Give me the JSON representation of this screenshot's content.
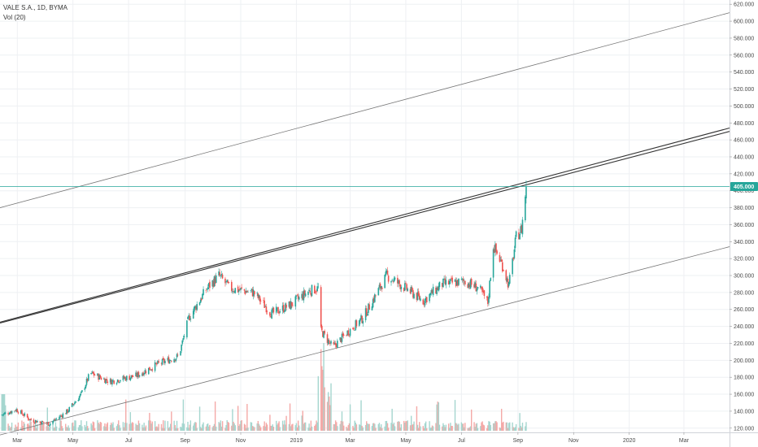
{
  "legend": {
    "symbol_line": "VALE S.A., 1D, BYMA",
    "volume_line": "Vol (20)"
  },
  "colors": {
    "up": "#26a69a",
    "down": "#ef5350",
    "vol_up": "#a5d6cf",
    "vol_down": "#f4a9a7",
    "grid": "#eef0f3",
    "trend": "#555555",
    "price_line": "#26a69a",
    "price_tag": "#26a69a"
  },
  "chart_data": {
    "type": "candlestick",
    "y_axis": {
      "min": 115,
      "max": 625,
      "ticks": [
        "120.000",
        "140.000",
        "160.000",
        "180.000",
        "200.000",
        "220.000",
        "240.000",
        "260.000",
        "280.000",
        "300.000",
        "320.000",
        "340.000",
        "360.000",
        "380.000",
        "400.000",
        "420.000",
        "440.000",
        "460.000",
        "480.000",
        "500.000",
        "520.000",
        "540.000",
        "560.000",
        "580.000",
        "600.000",
        "620.000"
      ],
      "tick_values": [
        120,
        140,
        160,
        180,
        200,
        220,
        240,
        260,
        280,
        300,
        320,
        340,
        360,
        380,
        400,
        420,
        440,
        460,
        480,
        500,
        520,
        540,
        560,
        580,
        600,
        620
      ]
    },
    "x_axis": {
      "start": "2018-02-10",
      "end": "2020-04-20",
      "labels": [
        {
          "text": "Mar",
          "date": "2018-03-01"
        },
        {
          "text": "May",
          "date": "2018-05-01"
        },
        {
          "text": "Jul",
          "date": "2018-07-01"
        },
        {
          "text": "Sep",
          "date": "2018-09-01"
        },
        {
          "text": "Nov",
          "date": "2018-11-01"
        },
        {
          "text": "2019",
          "date": "2019-01-01"
        },
        {
          "text": "Mar",
          "date": "2019-03-01"
        },
        {
          "text": "May",
          "date": "2019-05-01"
        },
        {
          "text": "Jul",
          "date": "2019-07-01"
        },
        {
          "text": "Sep",
          "date": "2019-09-01"
        },
        {
          "text": "Nov",
          "date": "2019-11-01"
        },
        {
          "text": "2020",
          "date": "2020-01-01"
        },
        {
          "text": "Mar",
          "date": "2020-03-01"
        }
      ]
    },
    "last_price": {
      "label": "405.000",
      "value": 405
    },
    "trend_lines": [
      {
        "name": "upper-channel",
        "from": {
          "date": "2018-02-10",
          "value": 380
        },
        "to": {
          "date": "2020-04-20",
          "value": 610
        }
      },
      {
        "name": "middle-channel-a",
        "from": {
          "date": "2018-02-10",
          "value": 245
        },
        "to": {
          "date": "2020-04-20",
          "value": 474
        }
      },
      {
        "name": "middle-channel-b",
        "from": {
          "date": "2018-02-10",
          "value": 244
        },
        "to": {
          "date": "2020-04-20",
          "value": 470
        }
      },
      {
        "name": "lower-channel",
        "from": {
          "date": "2018-02-10",
          "value": 112
        },
        "to": {
          "date": "2020-04-20",
          "value": 334
        }
      }
    ],
    "anchors": [
      {
        "date": "2018-02-10",
        "value": 135
      },
      {
        "date": "2018-02-28",
        "value": 142
      },
      {
        "date": "2018-03-15",
        "value": 130
      },
      {
        "date": "2018-04-05",
        "value": 125
      },
      {
        "date": "2018-04-25",
        "value": 140
      },
      {
        "date": "2018-05-10",
        "value": 160
      },
      {
        "date": "2018-05-20",
        "value": 185
      },
      {
        "date": "2018-06-10",
        "value": 175
      },
      {
        "date": "2018-07-10",
        "value": 182
      },
      {
        "date": "2018-08-01",
        "value": 195
      },
      {
        "date": "2018-08-25",
        "value": 205
      },
      {
        "date": "2018-09-05",
        "value": 250
      },
      {
        "date": "2018-09-25",
        "value": 285
      },
      {
        "date": "2018-10-08",
        "value": 300
      },
      {
        "date": "2018-10-20",
        "value": 285
      },
      {
        "date": "2018-11-15",
        "value": 280
      },
      {
        "date": "2018-12-05",
        "value": 255
      },
      {
        "date": "2018-12-25",
        "value": 265
      },
      {
        "date": "2019-01-15",
        "value": 282
      },
      {
        "date": "2019-01-25",
        "value": 285
      },
      {
        "date": "2019-01-28",
        "value": 235
      },
      {
        "date": "2019-02-10",
        "value": 215
      },
      {
        "date": "2019-02-25",
        "value": 232
      },
      {
        "date": "2019-03-15",
        "value": 250
      },
      {
        "date": "2019-04-10",
        "value": 300
      },
      {
        "date": "2019-05-01",
        "value": 285
      },
      {
        "date": "2019-05-20",
        "value": 270
      },
      {
        "date": "2019-06-10",
        "value": 290
      },
      {
        "date": "2019-07-05",
        "value": 293
      },
      {
        "date": "2019-07-20",
        "value": 285
      },
      {
        "date": "2019-07-30",
        "value": 268
      },
      {
        "date": "2019-08-05",
        "value": 335
      },
      {
        "date": "2019-08-15",
        "value": 312
      },
      {
        "date": "2019-08-22",
        "value": 288
      },
      {
        "date": "2019-08-30",
        "value": 345
      },
      {
        "date": "2019-09-05",
        "value": 355
      },
      {
        "date": "2019-09-10",
        "value": 405
      }
    ]
  }
}
